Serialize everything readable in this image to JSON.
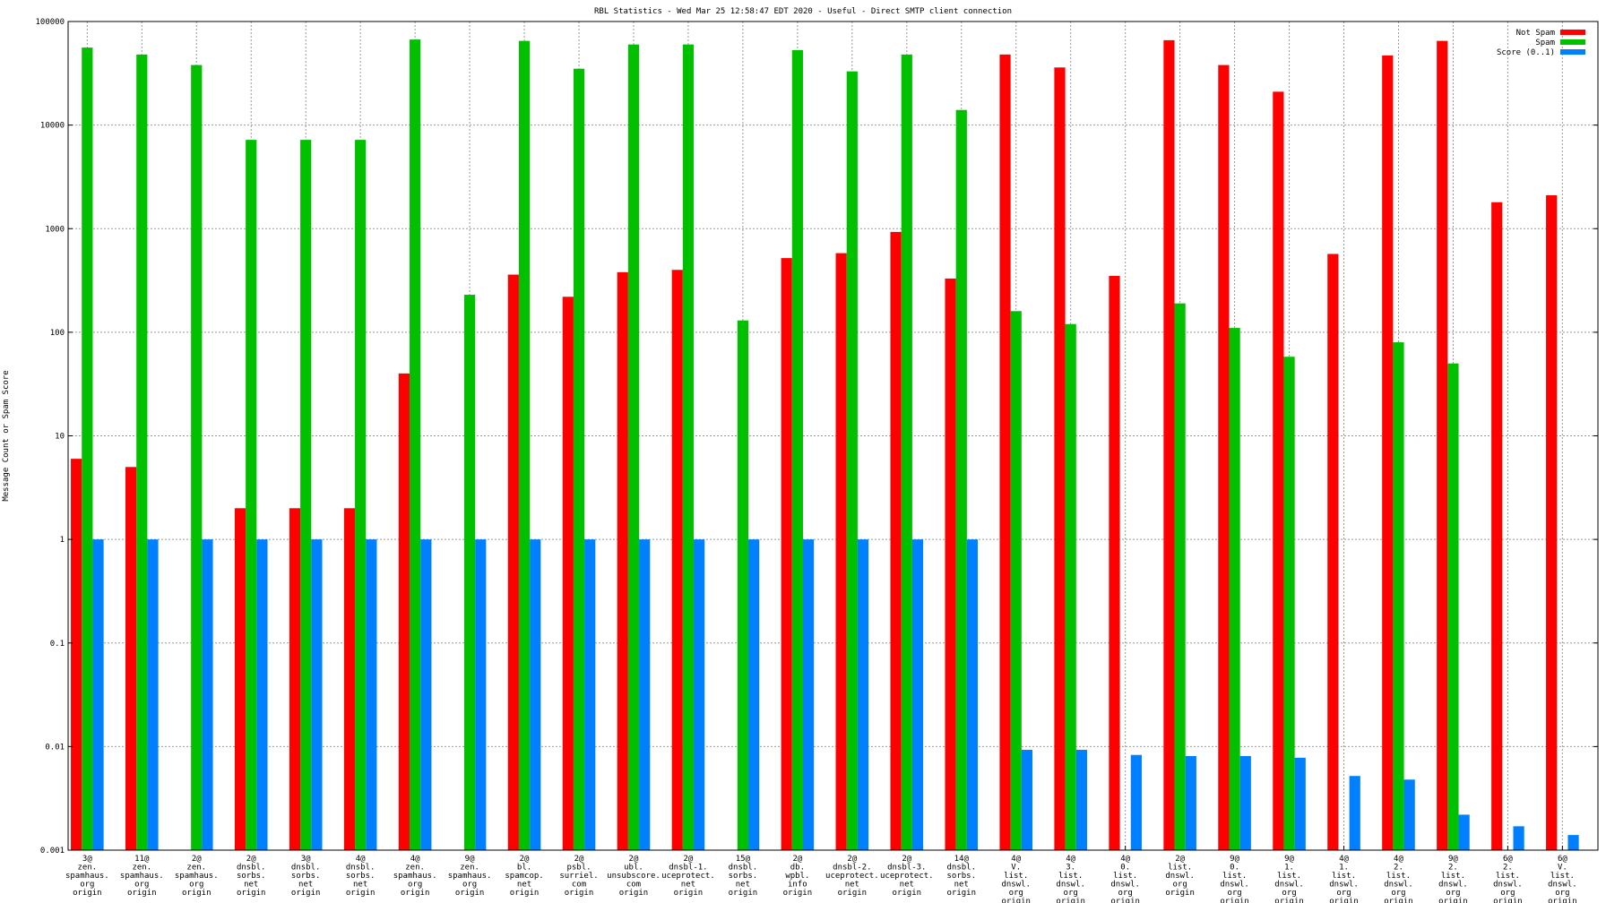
{
  "chart_data": {
    "type": "bar",
    "title": "RBL Statistics - Wed Mar 25 12:58:47 EDT 2020 - Useful - Direct SMTP client connection",
    "ylabel": "Message Count or Spam Score",
    "xlabel": "",
    "yscale": "log",
    "ylim": [
      0.001,
      100000
    ],
    "yticks": [
      "0.001",
      "0.01",
      "0.1",
      "1",
      "10",
      "100",
      "1000",
      "10000",
      "100000"
    ],
    "grid": true,
    "legend_position": "top-right",
    "categories": [
      [
        "3@",
        "zen.",
        "spamhaus.",
        "org",
        "origin"
      ],
      [
        "11@",
        "zen.",
        "spamhaus.",
        "org",
        "origin"
      ],
      [
        "2@",
        "zen.",
        "spamhaus.",
        "org",
        "origin"
      ],
      [
        "2@",
        "dnsbl.",
        "sorbs.",
        "net",
        "origin"
      ],
      [
        "3@",
        "dnsbl.",
        "sorbs.",
        "net",
        "origin"
      ],
      [
        "4@",
        "dnsbl.",
        "sorbs.",
        "net",
        "origin"
      ],
      [
        "4@",
        "zen.",
        "spamhaus.",
        "org",
        "origin"
      ],
      [
        "9@",
        "zen.",
        "spamhaus.",
        "org",
        "origin"
      ],
      [
        "2@",
        "bl.",
        "spamcop.",
        "net",
        "origin"
      ],
      [
        "2@",
        "psbl.",
        "surriel.",
        "com",
        "origin"
      ],
      [
        "2@",
        "ubl.",
        "unsubscore.",
        "com",
        "origin"
      ],
      [
        "2@",
        "dnsbl-1.",
        "uceprotect.",
        "net",
        "origin"
      ],
      [
        "15@",
        "dnsbl.",
        "sorbs.",
        "net",
        "origin"
      ],
      [
        "2@",
        "db.",
        "wpbl.",
        "info",
        "origin"
      ],
      [
        "2@",
        "dnsbl-2.",
        "uceprotect.",
        "net",
        "origin"
      ],
      [
        "2@",
        "dnsbl-3.",
        "uceprotect.",
        "net",
        "origin"
      ],
      [
        "14@",
        "dnsbl.",
        "sorbs.",
        "net",
        "origin"
      ],
      [
        "4@",
        "V.",
        "list.",
        "dnswl.",
        "org",
        "origin"
      ],
      [
        "4@",
        "3.",
        "list.",
        "dnswl.",
        "org",
        "origin"
      ],
      [
        "4@",
        "0.",
        "list.",
        "dnswl.",
        "org",
        "origin"
      ],
      [
        "2@",
        "list.",
        "dnswl.",
        "org",
        "origin"
      ],
      [
        "9@",
        "0.",
        "list.",
        "dnswl.",
        "org",
        "origin"
      ],
      [
        "9@",
        "1.",
        "list.",
        "dnswl.",
        "org",
        "origin"
      ],
      [
        "4@",
        "1.",
        "list.",
        "dnswl.",
        "org",
        "origin"
      ],
      [
        "4@",
        "2.",
        "list.",
        "dnswl.",
        "org",
        "origin"
      ],
      [
        "9@",
        "2.",
        "list.",
        "dnswl.",
        "org",
        "origin"
      ],
      [
        "6@",
        "2.",
        "list.",
        "dnswl.",
        "org",
        "origin"
      ],
      [
        "6@",
        "V.",
        "list.",
        "dnswl.",
        "org",
        "origin"
      ]
    ],
    "series": [
      {
        "name": "Not Spam",
        "color": "#ff0000",
        "values": [
          6,
          5,
          null,
          2,
          2,
          2,
          40,
          null,
          360,
          220,
          380,
          400,
          null,
          520,
          580,
          930,
          330,
          48000,
          36000,
          350,
          66000,
          38000,
          21000,
          570,
          47000,
          65000,
          1800,
          2100
        ]
      },
      {
        "name": "Spam",
        "color": "#00c000",
        "values": [
          56000,
          48000,
          38000,
          7200,
          7200,
          7200,
          67000,
          230,
          65000,
          35000,
          60000,
          60000,
          130,
          53000,
          33000,
          48000,
          14000,
          160,
          120,
          null,
          190,
          110,
          58,
          null,
          80,
          50,
          null,
          null
        ]
      },
      {
        "name": "Score (0..1)",
        "color": "#0080ff",
        "values": [
          1,
          1,
          1,
          1,
          1,
          1,
          1,
          1,
          1,
          1,
          1,
          1,
          1,
          1,
          1,
          1,
          1,
          0.0093,
          0.0093,
          0.0083,
          0.0081,
          0.0081,
          0.0078,
          0.0052,
          0.0048,
          0.0022,
          0.0017,
          0.0014
        ]
      }
    ]
  }
}
